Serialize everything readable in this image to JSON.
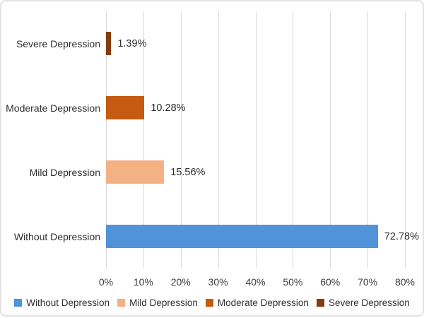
{
  "chart_data": {
    "type": "bar",
    "orientation": "horizontal",
    "rows": [
      {
        "category": "Severe Depression",
        "value": 1.39,
        "value_label": "1.39%",
        "color": "#843C0C"
      },
      {
        "category": "Moderate Depression",
        "value": 10.28,
        "value_label": "10.28%",
        "color": "#C55A11"
      },
      {
        "category": "Mild Depression",
        "value": 15.56,
        "value_label": "15.56%",
        "color": "#F4B183"
      },
      {
        "category": "Without Depression",
        "value": 72.78,
        "value_label": "72.78%",
        "color": "#5193D8"
      }
    ],
    "xlim": [
      0,
      80
    ],
    "x_ticks": [
      {
        "value": 0,
        "label": "0%"
      },
      {
        "value": 10,
        "label": "10%"
      },
      {
        "value": 20,
        "label": "20%"
      },
      {
        "value": 30,
        "label": "30%"
      },
      {
        "value": 40,
        "label": "40%"
      },
      {
        "value": 50,
        "label": "50%"
      },
      {
        "value": 60,
        "label": "60%"
      },
      {
        "value": 70,
        "label": "70%"
      },
      {
        "value": 80,
        "label": "80%"
      }
    ],
    "grid": true,
    "legend_position": "bottom",
    "legend": [
      {
        "label": "Without Depression",
        "color": "#5193D8"
      },
      {
        "label": "Mild Depression",
        "color": "#F4B183"
      },
      {
        "label": "Moderate Depression",
        "color": "#C55A11"
      },
      {
        "label": "Severe Depression",
        "color": "#843C0C"
      }
    ]
  },
  "style": {
    "gridline_color": "#d9d9d9",
    "border_color": "#e2e1e6",
    "text_color": "#2e2e2e"
  }
}
